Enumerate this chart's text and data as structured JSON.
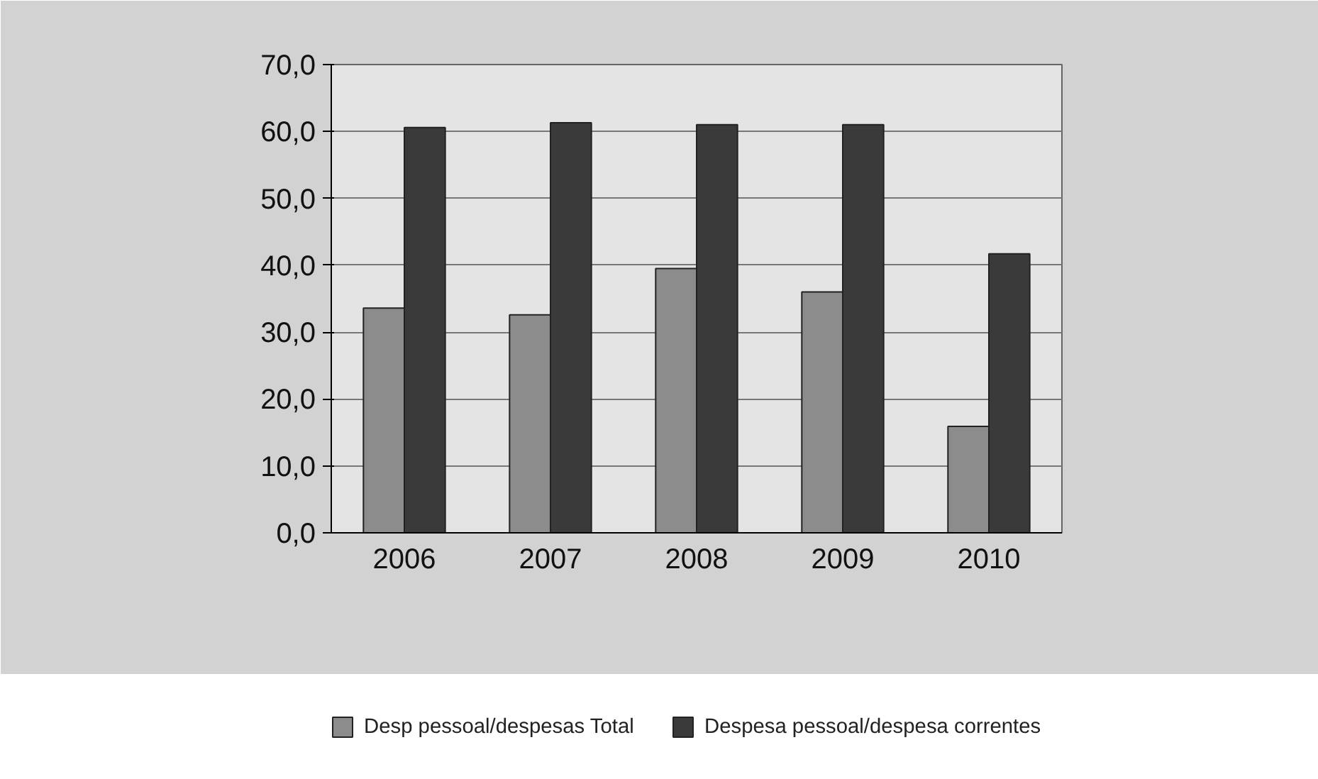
{
  "chart_data": {
    "type": "bar",
    "categories": [
      "2006",
      "2007",
      "2008",
      "2009",
      "2010"
    ],
    "series": [
      {
        "name": "Desp pessoal/despesas Total",
        "color": "#8c8c8c",
        "values": [
          33.6,
          32.6,
          39.5,
          36.0,
          15.9
        ]
      },
      {
        "name": "Despesa pessoal/despesa correntes",
        "color": "#3a3a3a",
        "values": [
          60.6,
          61.3,
          61.0,
          61.0,
          41.7
        ]
      }
    ],
    "ylim": [
      0,
      70
    ],
    "yticks": [
      {
        "value": 0,
        "label": "0,0"
      },
      {
        "value": 10,
        "label": "10,0"
      },
      {
        "value": 20,
        "label": "20,0"
      },
      {
        "value": 30,
        "label": "30,0"
      },
      {
        "value": 40,
        "label": "40,0"
      },
      {
        "value": 50,
        "label": "50,0"
      },
      {
        "value": 60,
        "label": "60,0"
      },
      {
        "value": 70,
        "label": "70,0"
      }
    ],
    "grid": "y",
    "legend": "bottom"
  }
}
